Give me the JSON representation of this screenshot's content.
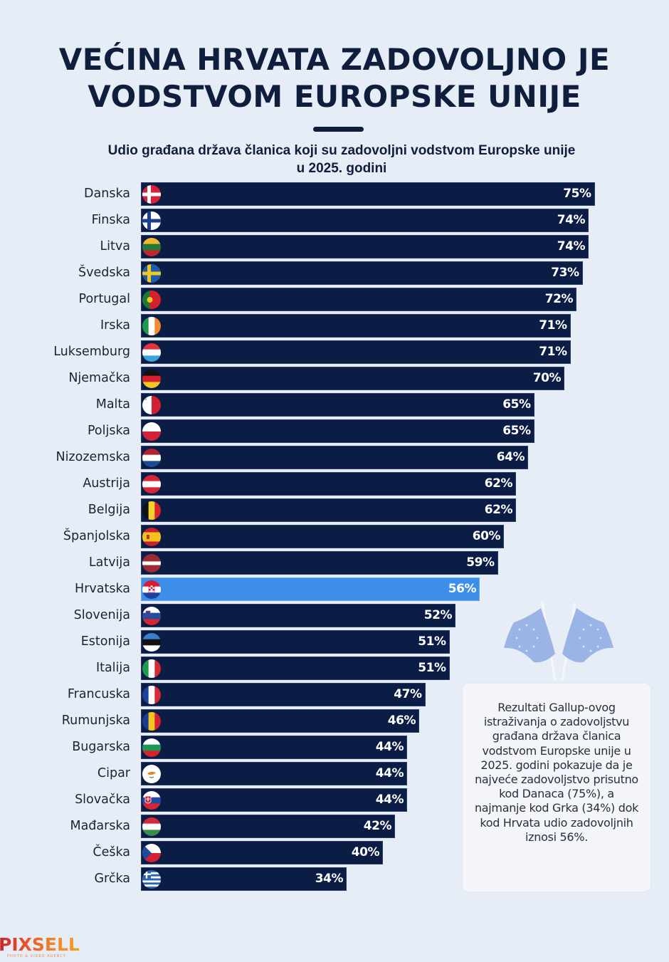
{
  "header": {
    "title_lines": [
      "VEĆINA HRVATA ZADOVOLJNO JE",
      "VODSTVOM EUROPSKE UNIJE"
    ],
    "subtitle_lines": [
      "Udio građana država članica koji su zadovoljni vodstvom Europske unije",
      "u 2025. godini"
    ]
  },
  "colors": {
    "background": "#e7edf7",
    "bar": "#0b1d45",
    "highlight_bar": "#3d8ee9",
    "title": "#0f1e3d"
  },
  "chart_data": {
    "type": "bar",
    "orientation": "horizontal",
    "title": "VEĆINA HRVATA ZADOVOLJNO JE VODSTVOM EUROPSKE UNIJE",
    "subtitle": "Udio građana država članica koji su zadovoljni vodstvom Europske unije u 2025. godini",
    "xlabel": "",
    "ylabel": "",
    "unit": "%",
    "xlim": [
      0,
      75
    ],
    "grid": false,
    "highlight": "Hrvatska",
    "categories": [
      "Danska",
      "Finska",
      "Litva",
      "Švedska",
      "Portugal",
      "Irska",
      "Luksemburg",
      "Njemačka",
      "Malta",
      "Poljska",
      "Nizozemska",
      "Austrija",
      "Belgija",
      "Španjolska",
      "Latvija",
      "Hrvatska",
      "Slovenija",
      "Estonija",
      "Italija",
      "Francuska",
      "Rumunjska",
      "Bugarska",
      "Cipar",
      "Slovačka",
      "Mađarska",
      "Češka",
      "Grčka"
    ],
    "values": [
      75,
      74,
      74,
      73,
      72,
      71,
      71,
      70,
      65,
      65,
      64,
      62,
      62,
      60,
      59,
      56,
      52,
      51,
      51,
      47,
      46,
      44,
      44,
      44,
      42,
      40,
      34
    ],
    "value_labels": [
      "75%",
      "74%",
      "74%",
      "73%",
      "72%",
      "71%",
      "71%",
      "70%",
      "65%",
      "65%",
      "64%",
      "62%",
      "62%",
      "60%",
      "59%",
      "56%",
      "52%",
      "51%",
      "51%",
      "47%",
      "46%",
      "44%",
      "44%",
      "44%",
      "42%",
      "40%",
      "34%"
    ],
    "flags": [
      "denmark-flag-icon",
      "finland-flag-icon",
      "lithuania-flag-icon",
      "sweden-flag-icon",
      "portugal-flag-icon",
      "ireland-flag-icon",
      "luxembourg-flag-icon",
      "germany-flag-icon",
      "malta-flag-icon",
      "poland-flag-icon",
      "netherlands-flag-icon",
      "austria-flag-icon",
      "belgium-flag-icon",
      "spain-flag-icon",
      "latvia-flag-icon",
      "croatia-flag-icon",
      "slovenia-flag-icon",
      "estonia-flag-icon",
      "italy-flag-icon",
      "france-flag-icon",
      "romania-flag-icon",
      "bulgaria-flag-icon",
      "cyprus-flag-icon",
      "slovakia-flag-icon",
      "hungary-flag-icon",
      "czechia-flag-icon",
      "greece-flag-icon"
    ]
  },
  "note": {
    "text": "Rezultati Gallup-ovog istraživanja o zadovoljstvu građana država članica vodstvom Europske unije u 2025. godini pokazuje da je najveće zadovoljstvo prisutno kod Danaca (75%), a najmanje kod Grka (34%) dok kod Hrvata udio zadovoljnih iznosi 56%."
  },
  "illustration": {
    "icon": "eu-flags-icon"
  },
  "logo": {
    "name": "PIXSELL",
    "tagline": "PHOTO & VIDEO AGENCY"
  }
}
